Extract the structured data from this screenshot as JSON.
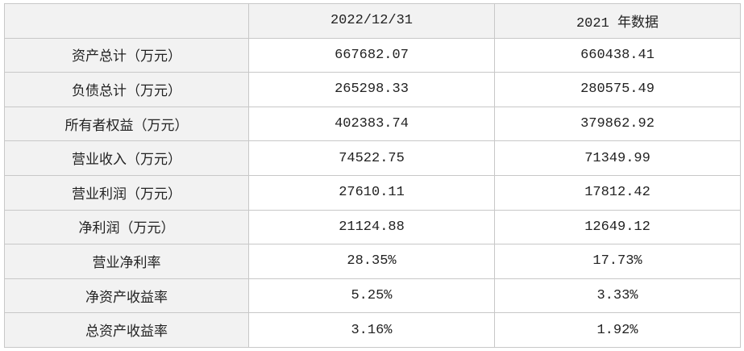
{
  "table": {
    "header": [
      "2022/12/31",
      "2021 年数据"
    ],
    "rows": [
      [
        "资产总计（万元）",
        "667682.07",
        "660438.41"
      ],
      [
        "负债总计（万元）",
        "265298.33",
        "280575.49"
      ],
      [
        "所有者权益（万元）",
        "402383.74",
        "379862.92"
      ],
      [
        "营业收入（万元）",
        "74522.75",
        "71349.99"
      ],
      [
        "营业利润（万元）",
        "27610.11",
        "17812.42"
      ],
      [
        "净利润（万元）",
        "21124.88",
        "12649.12"
      ],
      [
        "营业净利率",
        "28.35%",
        "17.73%"
      ],
      [
        "净资产收益率",
        "5.25%",
        "3.33%"
      ],
      [
        "总资产收益率",
        "3.16%",
        "1.92%"
      ]
    ]
  }
}
